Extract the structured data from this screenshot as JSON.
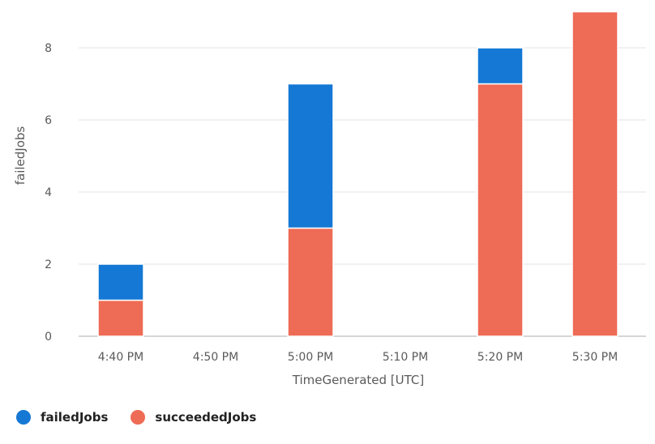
{
  "chart_data": {
    "type": "bar",
    "stacked": true,
    "categories": [
      "4:40 PM",
      "4:50 PM",
      "5:00 PM",
      "5:10 PM",
      "5:20 PM",
      "5:30 PM"
    ],
    "series": [
      {
        "name": "succeededJobs",
        "values": [
          1,
          0,
          3,
          0,
          7,
          9
        ],
        "color": "#ee6b55"
      },
      {
        "name": "failedJobs",
        "values": [
          1,
          0,
          4,
          0,
          1,
          0
        ],
        "color": "#1478d4"
      }
    ],
    "yticks": [
      "0",
      "2",
      "4",
      "6",
      "8"
    ],
    "ylim": [
      0,
      9
    ],
    "xlabel": "TimeGenerated [UTC]",
    "ylabel": "failedJobs",
    "grid": true,
    "legend_position": "bottom-left"
  },
  "legend": [
    {
      "name": "failedJobs",
      "color": "#1478d4"
    },
    {
      "name": "succeededJobs",
      "color": "#ee6b55"
    }
  ],
  "colors": {
    "grid": "#e3e3e3",
    "axis": "#c8c8c8",
    "bar_separator": "#ffffff"
  }
}
